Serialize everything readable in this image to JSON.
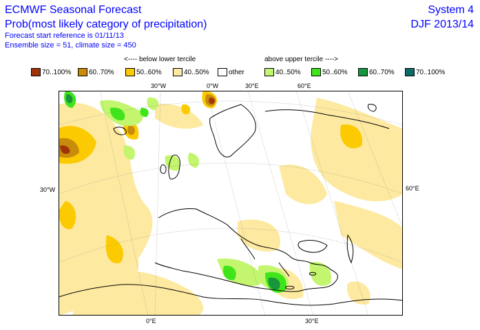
{
  "header": {
    "title": "ECMWF Seasonal Forecast",
    "subtitle": "Prob(most likely category of precipitation)",
    "start_reference": "Forecast start reference is 01/11/13",
    "ensemble": "Ensemble size = 51, climate size = 450",
    "system": "System 4",
    "season": "DJF 2013/14"
  },
  "legend": {
    "below_label": "<---- below lower tercile",
    "above_label": "above upper tercile ---->",
    "items": [
      {
        "label": "70..100%",
        "color": "#a0330a"
      },
      {
        "label": "60..70%",
        "color": "#c98c0a"
      },
      {
        "label": "50..60%",
        "color": "#fcca00"
      },
      {
        "label": "40..50%",
        "color": "#fde9a0"
      },
      {
        "label": "other",
        "color": "#ffffff"
      },
      {
        "label": "40..50%",
        "color": "#c3f56e"
      },
      {
        "label": "50..60%",
        "color": "#3fe51a"
      },
      {
        "label": "60..70%",
        "color": "#17963d"
      },
      {
        "label": "70..100%",
        "color": "#0a6b6b"
      }
    ]
  },
  "axis_labels": {
    "top_30w": "30°W",
    "top_0w": "0°W",
    "top_30e": "30°E",
    "top_60e": "60°E",
    "left_30w": "30°W",
    "right_60e": "60°E",
    "bottom_0e": "0°E",
    "bottom_30e": "30°E"
  },
  "colors": {
    "title_text": "#0000ff",
    "map_border": "#000000",
    "graticule": "#888888"
  }
}
